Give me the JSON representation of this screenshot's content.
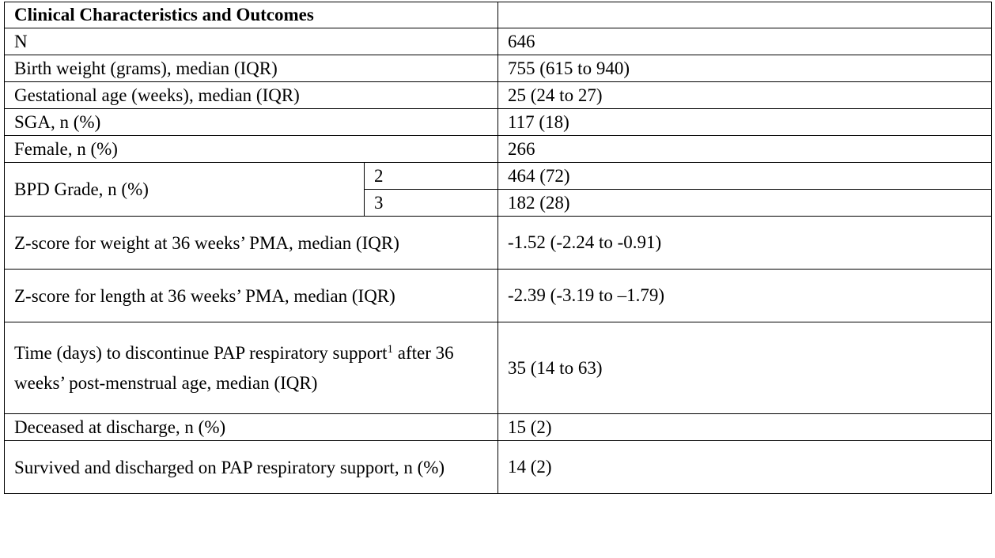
{
  "table": {
    "header": "Clinical Characteristics and Outcomes",
    "rows": {
      "n": {
        "label": "N",
        "value": "646"
      },
      "birth_weight": {
        "label": "Birth weight (grams), median (IQR)",
        "value": "755 (615 to 940)"
      },
      "gestational_age": {
        "label": "Gestational age (weeks), median (IQR)",
        "value": "25 (24 to 27)"
      },
      "sga": {
        "label": "SGA, n (%)",
        "value": "117 (18)"
      },
      "female": {
        "label": "Female, n (%)",
        "value": "266"
      },
      "bpd": {
        "label": "BPD Grade, n (%)",
        "grades": [
          {
            "grade": "2",
            "value": "464 (72)"
          },
          {
            "grade": "3",
            "value": "182 (28)"
          }
        ]
      },
      "z_weight": {
        "label": "Z-score for weight at 36 weeks’ PMA, median (IQR)",
        "value": "-1.52 (-2.24 to -0.91)"
      },
      "z_length": {
        "label": "Z-score for length at 36 weeks’ PMA, median (IQR)",
        "value": "-2.39 (-3.19 to –1.79)"
      },
      "time_pap": {
        "label_part1": "Time (days) to discontinue PAP respiratory support",
        "footnote": "1",
        "label_part2": " after 36 weeks’ post-menstrual age, median (IQR)",
        "value": "35 (14 to 63)"
      },
      "deceased": {
        "label": "Deceased at discharge, n (%)",
        "value": "15 (2)"
      },
      "survived_pap": {
        "label": "Survived and discharged on PAP respiratory support, n (%)",
        "value": "14 (2)"
      }
    }
  }
}
